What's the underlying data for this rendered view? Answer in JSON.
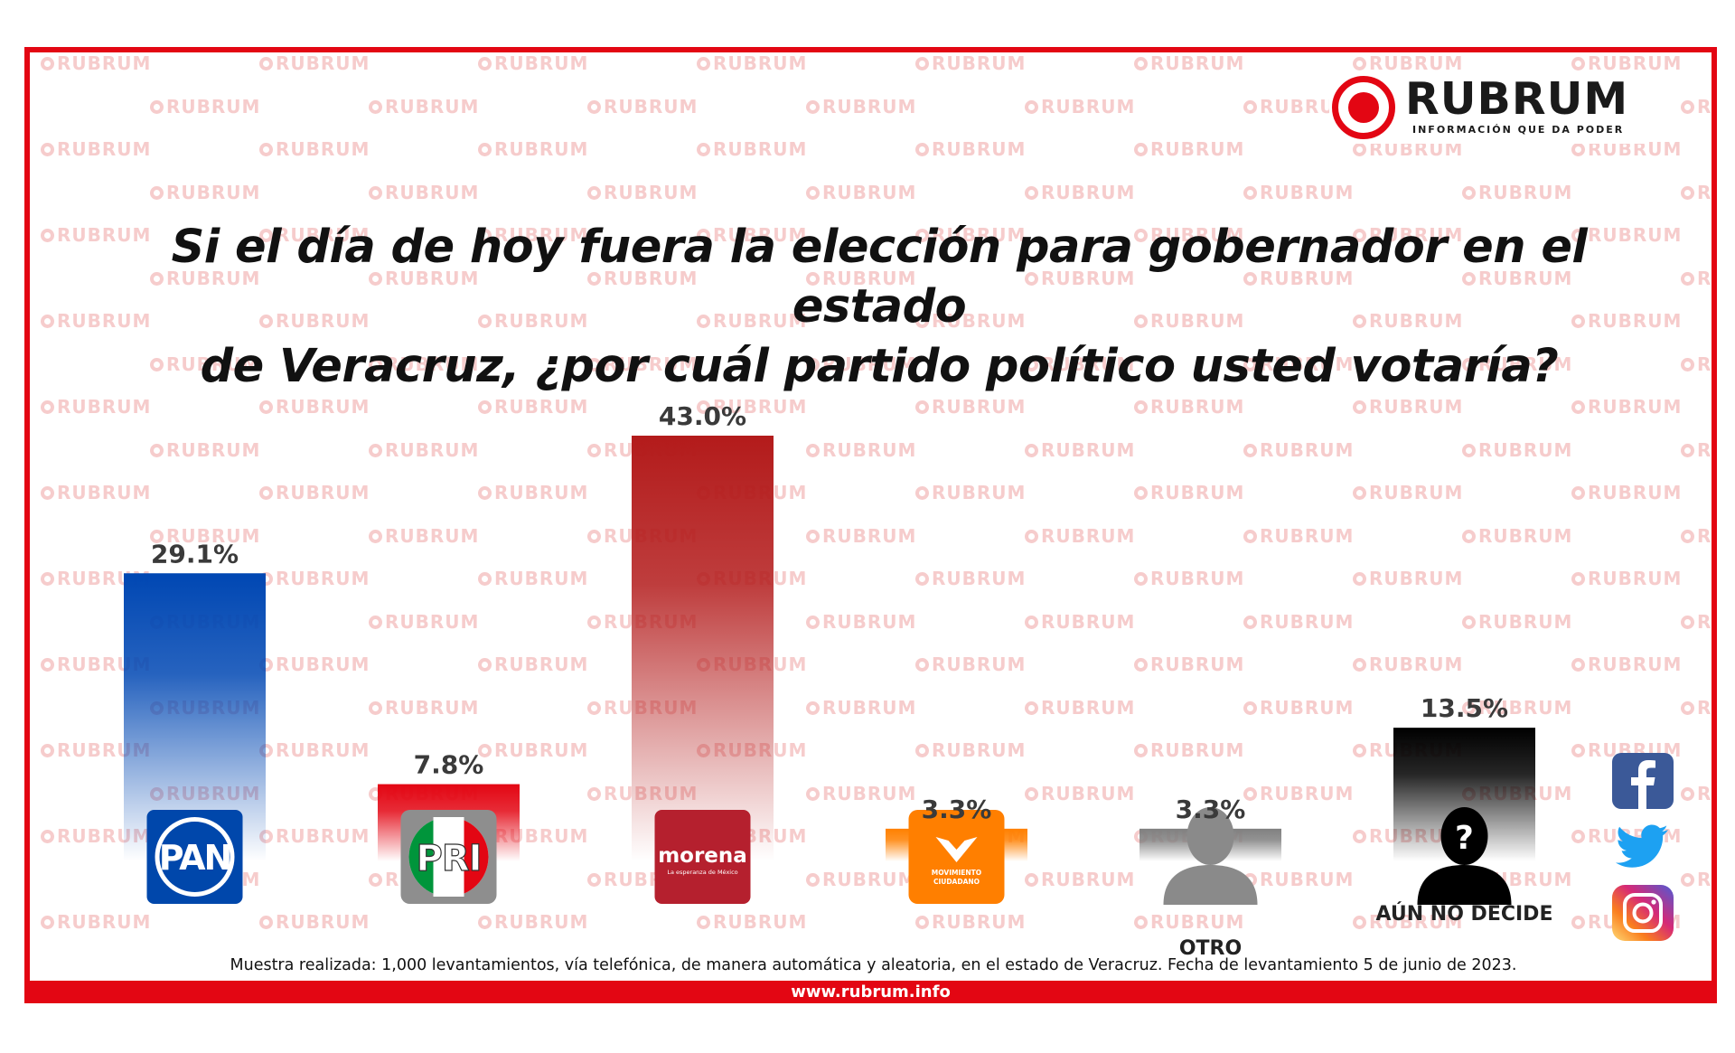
{
  "brand": {
    "name": "RUBRUM",
    "tagline": "INFORMACIÓN QUE DA PODER",
    "watermark_text": "RUBRUM",
    "accent_color": "#e30613"
  },
  "title_lines": [
    "Si el día de hoy fuera la elección para gobernador en el estado",
    "de Veracruz, ¿por cuál  partido político usted votaría?"
  ],
  "chart_data": {
    "type": "bar",
    "categories": [
      "PAN",
      "PRI",
      "morena",
      "MOVIMIENTO CIUDADANO",
      "OTRO",
      "AÚN NO DECIDE"
    ],
    "values": [
      29.1,
      7.8,
      43.0,
      3.3,
      3.3,
      13.5
    ],
    "value_labels": [
      "29.1%",
      "7.8%",
      "43.0%",
      "3.3%",
      "3.3%",
      "13.5%"
    ],
    "category_labels_shown": [
      "",
      "",
      "",
      "",
      "OTRO",
      "AÚN NO DECIDE"
    ],
    "logos": [
      {
        "name": "pan-logo",
        "text": "PAN",
        "color": "#0047ab"
      },
      {
        "name": "pri-logo",
        "text": "PRI",
        "colors": [
          "#00953b",
          "#ffffff",
          "#e30613"
        ]
      },
      {
        "name": "morena-logo",
        "text": "morena",
        "subtext": "La esperanza de México",
        "color": "#b5202e"
      },
      {
        "name": "mc-logo",
        "text": "MOVIMIENTO CIUDADANO",
        "color": "#ff7f00"
      },
      {
        "name": "otro-person-icon",
        "color": "#8a8a8a"
      },
      {
        "name": "undecided-person-icon",
        "color": "#000000"
      }
    ],
    "bar_colors": [
      "#0047b3",
      "#e30613",
      "#b31b1b",
      "#ff8000",
      "#808080",
      "#000000"
    ],
    "ylim": [
      0,
      43
    ],
    "grid": false,
    "legend": "none",
    "xlabel": "",
    "ylabel": ""
  },
  "social": [
    "facebook-icon",
    "twitter-icon",
    "instagram-icon"
  ],
  "footer": {
    "note": "Muestra realizada: 1,000 levantamientos, vía telefónica, de manera automática y aleatoria, en el estado de Veracruz. Fecha de levantamiento 5 de junio de 2023.",
    "website": "www.rubrum.info"
  }
}
